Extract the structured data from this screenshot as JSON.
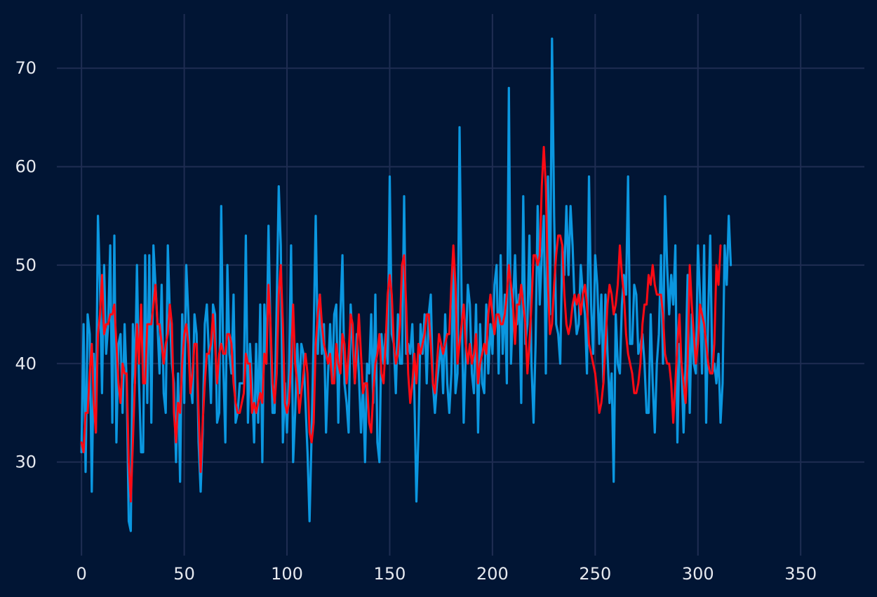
{
  "chart_data": {
    "type": "line",
    "title": "",
    "xlabel": "",
    "ylabel": "",
    "xlim": [
      -12,
      381
    ],
    "ylim": [
      20.5,
      75.5
    ],
    "xticks": [
      0,
      50,
      100,
      150,
      200,
      250,
      300,
      350
    ],
    "yticks": [
      30,
      40,
      50,
      60,
      70
    ],
    "grid": true,
    "colors": {
      "background": "#011534",
      "grid": "#1f2d52",
      "raw": "#0b97e0",
      "smoothed": "#ff0a14",
      "text": "#e6e9ef"
    },
    "series": [
      {
        "color": "#0b97e0",
        "y": [
          31,
          44,
          29,
          45,
          43,
          27,
          41,
          33,
          55,
          48,
          37,
          50,
          41,
          44,
          52,
          34,
          53,
          32,
          42,
          43,
          35,
          44,
          38,
          24,
          23,
          44,
          38,
          50,
          38,
          31,
          31,
          51,
          36,
          51,
          34,
          52,
          48,
          44,
          39,
          48,
          37,
          35,
          52,
          45,
          40,
          38,
          30,
          39,
          28,
          45,
          36,
          50,
          45,
          38,
          36,
          45,
          43,
          32,
          27,
          33,
          44,
          46,
          41,
          36,
          46,
          45,
          34,
          35,
          56,
          40,
          32,
          50,
          41,
          39,
          47,
          34,
          35,
          38,
          38,
          38,
          53,
          34,
          42,
          38,
          32,
          42,
          34,
          46,
          30,
          46,
          40,
          54,
          43,
          35,
          35,
          46,
          58,
          52,
          32,
          38,
          33,
          39,
          52,
          30,
          35,
          42,
          37,
          42,
          41,
          36,
          31,
          24,
          33,
          43,
          55,
          41,
          47,
          41,
          44,
          33,
          39,
          44,
          38,
          45,
          46,
          34,
          45,
          51,
          38,
          36,
          33,
          46,
          42,
          38,
          43,
          39,
          33,
          38,
          30,
          40,
          39,
          45,
          36,
          47,
          32,
          30,
          43,
          40,
          43,
          40,
          59,
          43,
          42,
          37,
          45,
          40,
          40,
          57,
          41,
          42,
          41,
          44,
          37,
          26,
          33,
          44,
          41,
          45,
          38,
          45,
          47,
          38,
          35,
          38,
          40,
          42,
          37,
          45,
          38,
          35,
          39,
          50,
          37,
          39,
          64,
          46,
          34,
          41,
          48,
          46,
          39,
          37,
          46,
          33,
          44,
          38,
          37,
          46,
          39,
          44,
          41,
          48,
          50,
          39,
          51,
          41,
          47,
          38,
          68,
          40,
          46,
          51,
          44,
          47,
          36,
          57,
          42,
          44,
          53,
          40,
          34,
          42,
          56,
          46,
          51,
          55,
          39,
          59,
          45,
          73,
          55,
          44,
          43,
          40,
          52,
          49,
          56,
          49,
          56,
          52,
          46,
          43,
          44,
          50,
          47,
          45,
          39,
          59,
          46,
          41,
          51,
          48,
          42,
          47,
          38,
          47,
          41,
          36,
          39,
          28,
          45,
          40,
          39,
          46,
          49,
          47,
          59,
          42,
          42,
          48,
          47,
          41,
          42,
          43,
          40,
          35,
          35,
          45,
          38,
          33,
          40,
          43,
          51,
          40,
          57,
          50,
          45,
          49,
          46,
          52,
          32,
          42,
          40,
          33,
          40,
          49,
          35,
          45,
          40,
          39,
          52,
          47,
          39,
          52,
          34,
          45,
          53,
          39,
          40,
          38,
          41,
          34,
          38,
          52,
          48,
          55,
          50
        ]
      },
      {
        "color": "#ff0a14",
        "y": [
          32,
          31,
          35,
          35,
          39,
          42,
          36,
          33,
          43,
          45,
          49,
          43,
          44,
          44,
          45,
          45,
          46,
          42,
          38,
          36,
          40,
          39,
          39,
          30,
          26,
          32,
          38,
          44,
          40,
          46,
          38,
          38,
          44,
          44,
          44,
          46,
          48,
          44,
          44,
          42,
          40,
          42,
          43,
          46,
          44,
          35,
          32,
          36,
          35,
          40,
          43,
          44,
          42,
          37,
          39,
          42,
          42,
          35,
          29,
          34,
          38,
          41,
          41,
          42,
          45,
          42,
          38,
          41,
          42,
          41,
          41,
          43,
          43,
          42,
          38,
          36,
          35,
          35,
          36,
          37,
          41,
          40,
          40,
          35,
          36,
          35,
          36,
          37,
          36,
          41,
          40,
          48,
          44,
          38,
          36,
          39,
          47,
          50,
          44,
          36,
          35,
          36,
          40,
          46,
          40,
          38,
          35,
          37,
          39,
          41,
          39,
          33,
          32,
          34,
          42,
          45,
          47,
          44,
          42,
          41,
          40,
          41,
          38,
          38,
          42,
          40,
          39,
          43,
          42,
          38,
          41,
          45,
          44,
          38,
          41,
          45,
          41,
          37,
          38,
          38,
          34,
          33,
          37,
          40,
          41,
          43,
          39,
          38,
          42,
          47,
          49,
          47,
          42,
          40,
          41,
          44,
          50,
          51,
          46,
          39,
          36,
          38,
          41,
          38,
          42,
          41,
          42,
          43,
          45,
          45,
          42,
          38,
          37,
          40,
          43,
          42,
          41,
          42,
          43,
          43,
          48,
          52,
          48,
          40,
          42,
          44,
          46,
          42,
          40,
          42,
          40,
          41,
          43,
          38,
          40,
          41,
          42,
          41,
          45,
          47,
          45,
          43,
          45,
          45,
          44,
          44,
          45,
          47,
          50,
          48,
          46,
          42,
          46,
          46,
          48,
          46,
          44,
          39,
          42,
          46,
          51,
          51,
          50,
          51,
          58,
          62,
          58,
          48,
          43,
          44,
          48,
          51,
          53,
          53,
          52,
          47,
          44,
          43,
          44,
          46,
          47,
          46,
          47,
          45,
          47,
          48,
          46,
          42,
          41,
          40,
          39,
          37,
          35,
          36,
          38,
          42,
          46,
          48,
          47,
          45,
          46,
          48,
          52,
          49,
          47,
          43,
          41,
          40,
          39,
          37,
          37,
          38,
          40,
          44,
          46,
          46,
          49,
          48,
          50,
          48,
          47,
          47,
          47,
          45,
          41,
          40,
          40,
          38,
          34,
          38,
          42,
          45,
          40,
          38,
          36,
          40,
          50,
          46,
          43,
          40,
          42,
          46,
          45,
          44,
          42,
          40,
          39,
          39,
          42,
          50,
          48,
          52
        ]
      }
    ]
  }
}
